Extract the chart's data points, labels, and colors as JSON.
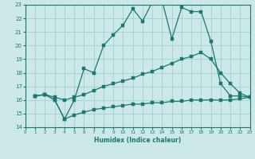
{
  "xlabel": "Humidex (Indice chaleur)",
  "bg_color": "#cce8e8",
  "grid_color": "#99cccc",
  "line_color": "#1a7a6a",
  "xlim": [
    0,
    23
  ],
  "ylim": [
    14,
    23
  ],
  "xticks": [
    0,
    1,
    2,
    3,
    4,
    5,
    6,
    7,
    8,
    9,
    10,
    11,
    12,
    13,
    14,
    15,
    16,
    17,
    18,
    19,
    20,
    21,
    22,
    23
  ],
  "yticks": [
    14,
    15,
    16,
    17,
    18,
    19,
    20,
    21,
    22,
    23
  ],
  "line1_x": [
    1,
    2,
    3,
    4,
    5,
    6,
    7,
    8,
    9,
    10,
    11,
    12,
    13,
    14,
    15,
    16,
    17,
    18,
    19,
    20,
    21,
    22,
    23
  ],
  "line1_y": [
    16.3,
    16.4,
    16.0,
    14.6,
    14.9,
    15.1,
    15.3,
    15.4,
    15.5,
    15.6,
    15.7,
    15.7,
    15.8,
    15.8,
    15.9,
    15.9,
    16.0,
    16.0,
    16.0,
    16.0,
    16.0,
    16.1,
    16.2
  ],
  "line2_x": [
    1,
    2,
    3,
    4,
    5,
    6,
    7,
    8,
    9,
    10,
    11,
    12,
    13,
    14,
    15,
    16,
    17,
    18,
    19,
    20,
    21,
    22,
    23
  ],
  "line2_y": [
    16.3,
    16.4,
    16.2,
    16.0,
    16.2,
    16.4,
    16.7,
    17.0,
    17.2,
    17.4,
    17.6,
    17.9,
    18.1,
    18.4,
    18.7,
    19.0,
    19.2,
    19.5,
    19.0,
    18.0,
    17.2,
    16.5,
    16.2
  ],
  "line3_x": [
    1,
    2,
    3,
    4,
    5,
    6,
    7,
    8,
    9,
    10,
    11,
    12,
    13,
    14,
    15,
    16,
    17,
    18,
    19,
    20,
    21,
    22,
    23
  ],
  "line3_y": [
    16.3,
    16.4,
    16.0,
    14.6,
    16.0,
    18.3,
    18.0,
    20.0,
    20.8,
    21.5,
    22.7,
    21.8,
    23.2,
    23.3,
    20.5,
    22.8,
    22.5,
    22.5,
    20.3,
    17.2,
    16.3,
    16.3,
    16.2
  ]
}
